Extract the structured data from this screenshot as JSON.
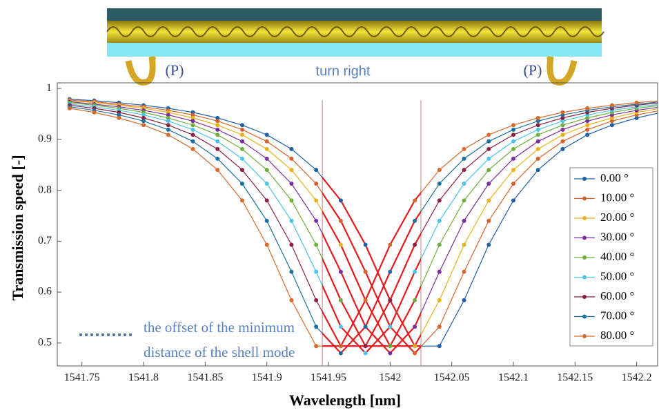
{
  "chart_data": {
    "type": "line",
    "title_left": "(P)",
    "title_center": "turn right",
    "title_right": "(P)",
    "xlabel": "Wavelength [nm]",
    "ylabel": "Transmission speed [-]",
    "annotation": [
      "the offset of the minimum",
      "distance of the shell mode"
    ],
    "x": [
      1541.74,
      1541.76,
      1541.78,
      1541.8,
      1541.82,
      1541.84,
      1541.86,
      1541.88,
      1541.9,
      1541.92,
      1541.94,
      1541.96,
      1541.98,
      1542.0,
      1542.02,
      1542.04,
      1542.06,
      1542.08,
      1542.1,
      1542.12,
      1542.14,
      1542.16,
      1542.18,
      1542.2,
      1542.22
    ],
    "series": [
      {
        "name": "0.00 °",
        "color": "#1f5fa8",
        "values": [
          0.979,
          0.976,
          0.972,
          0.967,
          0.961,
          0.953,
          0.942,
          0.928,
          0.909,
          0.881,
          0.84,
          0.78,
          0.693,
          0.584,
          0.494,
          0.494,
          0.584,
          0.693,
          0.78,
          0.84,
          0.881,
          0.909,
          0.928,
          0.942,
          0.953
        ]
      },
      {
        "name": "10.00 °",
        "color": "#d9622b",
        "values": [
          0.977,
          0.974,
          0.969,
          0.964,
          0.957,
          0.948,
          0.936,
          0.919,
          0.896,
          0.862,
          0.813,
          0.74,
          0.64,
          0.532,
          0.48,
          0.532,
          0.64,
          0.74,
          0.813,
          0.862,
          0.896,
          0.919,
          0.936,
          0.948,
          0.957
        ]
      },
      {
        "name": "20.00 °",
        "color": "#e8b21a",
        "values": [
          0.976,
          0.972,
          0.967,
          0.961,
          0.953,
          0.942,
          0.928,
          0.909,
          0.881,
          0.84,
          0.78,
          0.693,
          0.584,
          0.494,
          0.494,
          0.584,
          0.693,
          0.78,
          0.84,
          0.881,
          0.909,
          0.928,
          0.942,
          0.953,
          0.961
        ]
      },
      {
        "name": "30.00 °",
        "color": "#7b2f9e",
        "values": [
          0.974,
          0.969,
          0.964,
          0.957,
          0.948,
          0.936,
          0.919,
          0.896,
          0.862,
          0.813,
          0.74,
          0.64,
          0.532,
          0.48,
          0.532,
          0.64,
          0.74,
          0.813,
          0.862,
          0.896,
          0.919,
          0.936,
          0.948,
          0.957,
          0.964
        ]
      },
      {
        "name": "40.00 °",
        "color": "#6fae3c",
        "values": [
          0.972,
          0.967,
          0.961,
          0.953,
          0.942,
          0.928,
          0.909,
          0.881,
          0.84,
          0.78,
          0.693,
          0.584,
          0.494,
          0.494,
          0.584,
          0.693,
          0.78,
          0.84,
          0.881,
          0.909,
          0.928,
          0.942,
          0.953,
          0.961,
          0.967
        ]
      },
      {
        "name": "50.00 °",
        "color": "#4cc3e8",
        "values": [
          0.969,
          0.964,
          0.957,
          0.948,
          0.936,
          0.919,
          0.896,
          0.862,
          0.813,
          0.74,
          0.64,
          0.532,
          0.48,
          0.532,
          0.64,
          0.74,
          0.813,
          0.862,
          0.896,
          0.919,
          0.936,
          0.948,
          0.957,
          0.964,
          0.969
        ]
      },
      {
        "name": "60.00 °",
        "color": "#8e1f3f",
        "values": [
          0.967,
          0.961,
          0.953,
          0.942,
          0.928,
          0.909,
          0.881,
          0.84,
          0.78,
          0.693,
          0.584,
          0.494,
          0.494,
          0.584,
          0.693,
          0.78,
          0.84,
          0.881,
          0.909,
          0.928,
          0.942,
          0.953,
          0.961,
          0.967,
          0.972
        ]
      },
      {
        "name": "70.00 °",
        "color": "#1a6fa0",
        "values": [
          0.964,
          0.957,
          0.948,
          0.936,
          0.919,
          0.896,
          0.862,
          0.813,
          0.74,
          0.64,
          0.532,
          0.48,
          0.532,
          0.64,
          0.74,
          0.813,
          0.862,
          0.896,
          0.919,
          0.936,
          0.948,
          0.957,
          0.964,
          0.969,
          0.974
        ]
      },
      {
        "name": "80.00 °",
        "color": "#d66a2b",
        "values": [
          0.961,
          0.953,
          0.942,
          0.928,
          0.909,
          0.881,
          0.84,
          0.78,
          0.693,
          0.584,
          0.494,
          0.494,
          0.584,
          0.693,
          0.78,
          0.84,
          0.881,
          0.909,
          0.928,
          0.942,
          0.953,
          0.961,
          0.967,
          0.972,
          0.976
        ]
      }
    ],
    "xlim": [
      1541.73,
      1542.217
    ],
    "ylim": [
      0.455,
      1.011
    ],
    "xticks": [
      1541.75,
      1541.8,
      1541.85,
      1541.9,
      1541.95,
      1542,
      1542.05,
      1542.1,
      1542.15,
      1542.2
    ],
    "yticks": [
      0.5,
      0.6,
      0.7,
      0.8,
      0.9,
      1
    ],
    "highlight_xrange": [
      1541.945,
      1542.025
    ],
    "highlight_color": "#e41a1c",
    "legend": "right"
  }
}
